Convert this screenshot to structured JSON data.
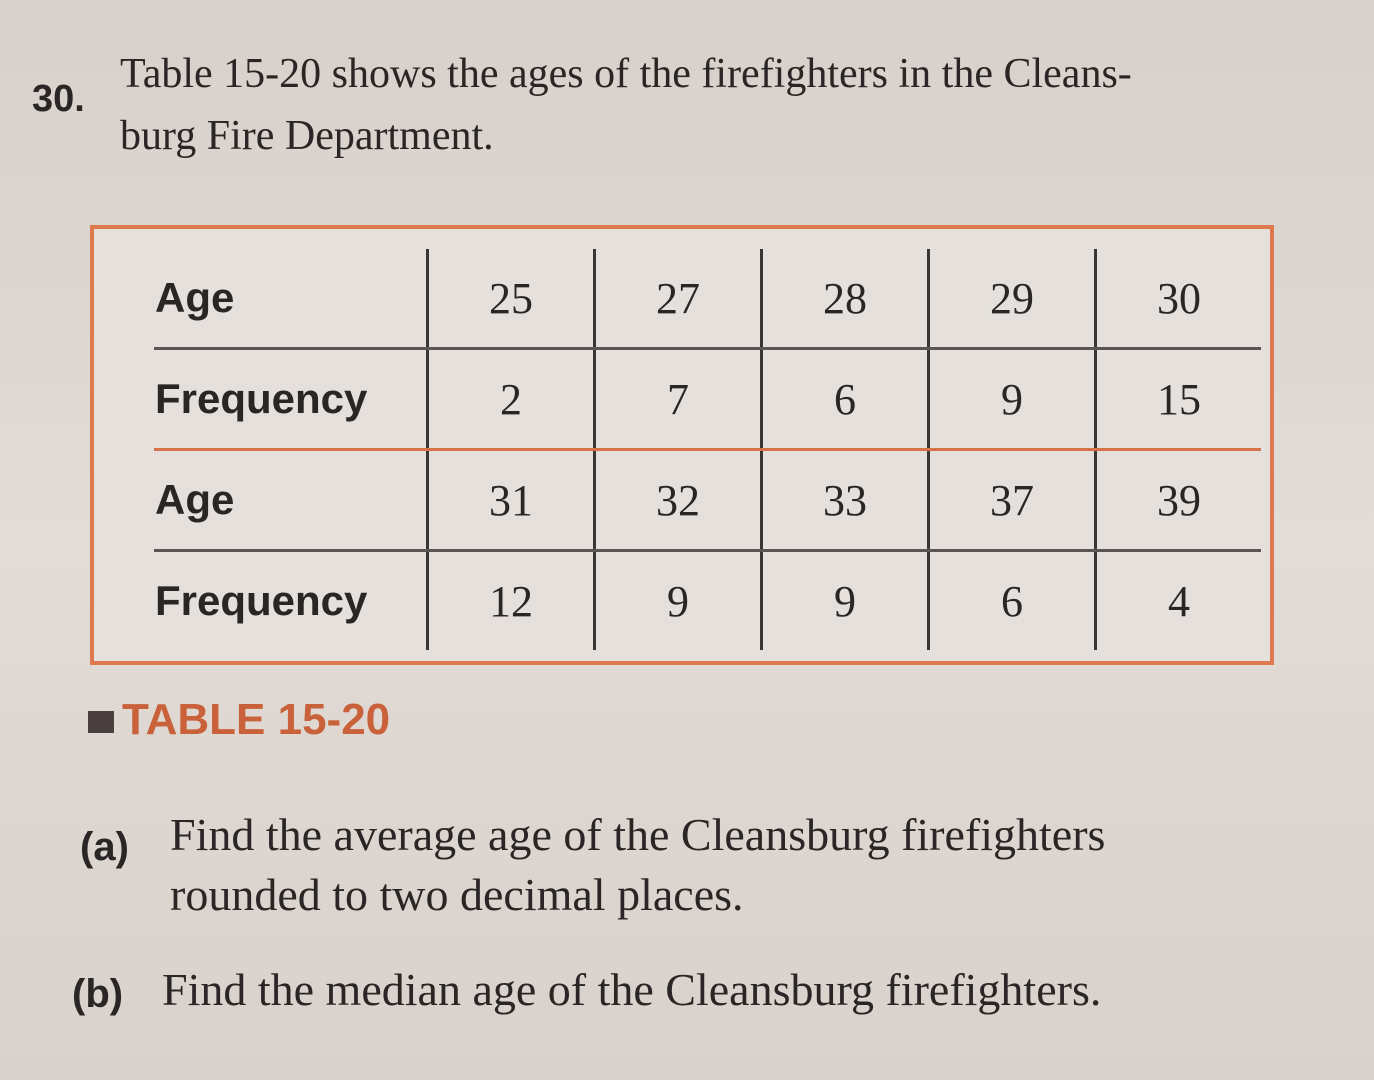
{
  "problem": {
    "number": "30.",
    "lines": [
      "Table 15-20 shows the ages of the firefighters in the Cleans-",
      "burg Fire Department."
    ]
  },
  "table": {
    "rows": [
      [
        "Age",
        25,
        27,
        28,
        29,
        30
      ],
      [
        "Frequency",
        2,
        7,
        6,
        9,
        15
      ],
      [
        "Age",
        31,
        32,
        33,
        37,
        39
      ],
      [
        "Frequency",
        12,
        9,
        9,
        6,
        4
      ]
    ]
  },
  "caption": "TABLE 15-20",
  "parts": [
    {
      "label": "(a)",
      "lines": [
        "Find the average age of the Cleansburg firefighters",
        "rounded to two decimal places."
      ]
    },
    {
      "label": "(b)",
      "lines": [
        "Find the median age of the Cleansburg firefighters."
      ]
    }
  ]
}
